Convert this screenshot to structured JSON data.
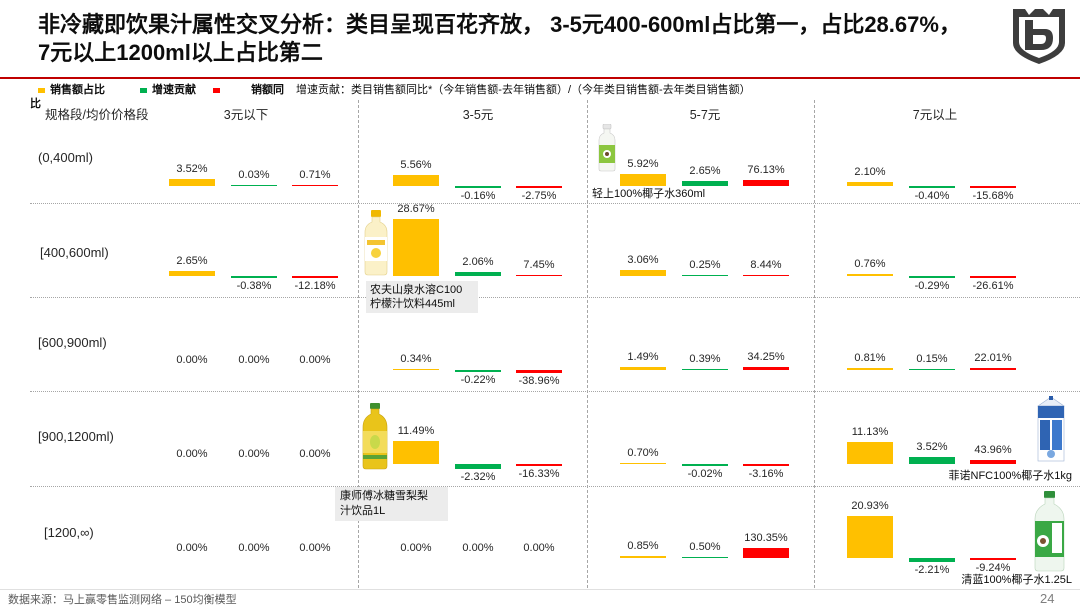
{
  "title_lines": [
    "非冷藏即饮果汁属性交叉分析：类目呈现百花齐放， 3-5元400-600ml占比第一，占比28.67%，",
    "7元以上1200ml以上占比第二"
  ],
  "logo_icon": "shield-logo-icon",
  "chart_data": {
    "type": "bar",
    "row_header": "规格段/均价价格段",
    "columns": [
      "3元以下",
      "3-5元",
      "5-7元",
      "7元以上"
    ],
    "rows": [
      "(0,400ml)",
      "[400,600ml)",
      "[600,900ml)",
      "[900,1200ml)",
      "[1200,∞)"
    ],
    "unit": "%",
    "legend": [
      {
        "label": "销售额占比",
        "color": "#FFC000"
      },
      {
        "label": "增速贡献",
        "color": "#00B050"
      },
      {
        "label": "销额同",
        "label_wrapped": "比",
        "color": "#FF0000"
      }
    ],
    "note": "增速贡献：类目销售额同比*（今年销售额-去年销售额）/（今年类目销售额-去年类目销售额）",
    "series": [
      {
        "color": "#FFC000",
        "values": [
          [
            3.52,
            5.56,
            5.92,
            2.1
          ],
          [
            2.65,
            28.67,
            3.06,
            0.76
          ],
          [
            0.0,
            0.34,
            1.49,
            0.81
          ],
          [
            0.0,
            11.49,
            0.7,
            11.13
          ],
          [
            0.0,
            0.0,
            0.85,
            20.93
          ]
        ]
      },
      {
        "color": "#00B050",
        "values": [
          [
            0.03,
            -0.16,
            2.65,
            -0.4
          ],
          [
            -0.38,
            2.06,
            0.25,
            -0.29
          ],
          [
            0.0,
            -0.22,
            0.39,
            0.15
          ],
          [
            0.0,
            -2.32,
            -0.02,
            3.52
          ],
          [
            0.0,
            0.0,
            0.5,
            -2.21
          ]
        ]
      },
      {
        "color": "#FF0000",
        "values": [
          [
            0.71,
            -2.75,
            76.13,
            -15.68
          ],
          [
            -12.18,
            7.45,
            8.44,
            -26.61
          ],
          [
            0.0,
            -38.96,
            34.25,
            22.01
          ],
          [
            0.0,
            -16.33,
            -3.16,
            43.96
          ],
          [
            0.0,
            0.0,
            130.35,
            -9.24
          ]
        ]
      }
    ]
  },
  "products": [
    {
      "caption": [
        "轻上100%椰子水360ml"
      ],
      "image": "coconut-water-bottle-image"
    },
    {
      "caption": [
        "农夫山泉水溶C100",
        "柠檬汁饮料445ml"
      ],
      "image": "lemon-juice-bottle-image"
    },
    {
      "caption": [
        "康师傅冰糖雪梨梨",
        "汁饮品1L"
      ],
      "image": "pear-juice-bottle-image"
    },
    {
      "caption": [
        "菲诺NFC100%椰子水1kg"
      ],
      "image": "coconut-water-carton-image"
    },
    {
      "caption": [
        "清蓝100%椰子水1.25L"
      ],
      "image": "coconut-water-large-bottle-image"
    }
  ],
  "footer": {
    "source": "数据来源：马上赢零售监测网络 – 150均衡模型",
    "page_number": "24"
  }
}
